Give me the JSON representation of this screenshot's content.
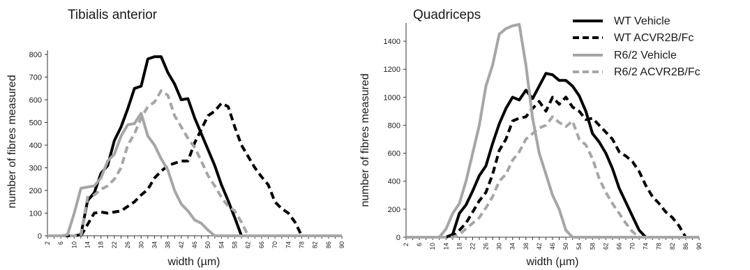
{
  "chart_data": [
    {
      "type": "line",
      "title": "Tibialis anterior",
      "xlabel": "width (µm)",
      "ylabel": "number of fibres measured",
      "ylim": [
        0,
        800
      ],
      "yticks": [
        0,
        100,
        200,
        300,
        400,
        500,
        600,
        700,
        800
      ],
      "xlim": [
        2,
        90
      ],
      "xticks": [
        2,
        6,
        10,
        14,
        18,
        22,
        26,
        30,
        34,
        38,
        42,
        46,
        50,
        54,
        58,
        62,
        66,
        70,
        74,
        78,
        82,
        86,
        90
      ],
      "grid": false,
      "series": [
        {
          "name": "WT Vehicle",
          "color": "#000000",
          "dash": false,
          "points": [
            [
              2,
              0
            ],
            [
              10,
              0
            ],
            [
              12,
              5
            ],
            [
              14,
              155
            ],
            [
              16,
              190
            ],
            [
              18,
              275
            ],
            [
              20,
              310
            ],
            [
              22,
              420
            ],
            [
              24,
              480
            ],
            [
              26,
              560
            ],
            [
              28,
              650
            ],
            [
              30,
              660
            ],
            [
              32,
              780
            ],
            [
              34,
              790
            ],
            [
              36,
              790
            ],
            [
              38,
              720
            ],
            [
              40,
              670
            ],
            [
              42,
              600
            ],
            [
              44,
              605
            ],
            [
              46,
              520
            ],
            [
              48,
              450
            ],
            [
              50,
              380
            ],
            [
              52,
              310
            ],
            [
              54,
              225
            ],
            [
              56,
              155
            ],
            [
              58,
              80
            ],
            [
              60,
              0
            ],
            [
              90,
              0
            ]
          ]
        },
        {
          "name": "WT ACVR2B/Fc",
          "color": "#000000",
          "dash": true,
          "points": [
            [
              2,
              0
            ],
            [
              12,
              0
            ],
            [
              14,
              50
            ],
            [
              16,
              100
            ],
            [
              18,
              105
            ],
            [
              20,
              100
            ],
            [
              22,
              105
            ],
            [
              24,
              110
            ],
            [
              26,
              130
            ],
            [
              28,
              150
            ],
            [
              30,
              180
            ],
            [
              32,
              205
            ],
            [
              34,
              255
            ],
            [
              36,
              285
            ],
            [
              38,
              310
            ],
            [
              40,
              320
            ],
            [
              42,
              330
            ],
            [
              44,
              330
            ],
            [
              46,
              410
            ],
            [
              48,
              470
            ],
            [
              50,
              530
            ],
            [
              52,
              550
            ],
            [
              54,
              585
            ],
            [
              56,
              570
            ],
            [
              58,
              480
            ],
            [
              60,
              400
            ],
            [
              62,
              350
            ],
            [
              64,
              300
            ],
            [
              66,
              260
            ],
            [
              68,
              225
            ],
            [
              70,
              150
            ],
            [
              72,
              120
            ],
            [
              74,
              100
            ],
            [
              76,
              60
            ],
            [
              78,
              0
            ],
            [
              90,
              0
            ]
          ]
        },
        {
          "name": "R6/2 Vehicle",
          "color": "#a6a6a6",
          "dash": false,
          "points": [
            [
              2,
              0
            ],
            [
              6,
              0
            ],
            [
              8,
              5
            ],
            [
              10,
              100
            ],
            [
              12,
              210
            ],
            [
              14,
              215
            ],
            [
              16,
              220
            ],
            [
              18,
              255
            ],
            [
              20,
              330
            ],
            [
              22,
              360
            ],
            [
              24,
              440
            ],
            [
              26,
              490
            ],
            [
              28,
              495
            ],
            [
              30,
              540
            ],
            [
              32,
              440
            ],
            [
              34,
              400
            ],
            [
              36,
              340
            ],
            [
              38,
              290
            ],
            [
              40,
              200
            ],
            [
              42,
              140
            ],
            [
              44,
              110
            ],
            [
              46,
              70
            ],
            [
              48,
              55
            ],
            [
              50,
              25
            ],
            [
              52,
              0
            ],
            [
              90,
              0
            ]
          ]
        },
        {
          "name": "R6/2 ACVR2B/Fc",
          "color": "#a6a6a6",
          "dash": true,
          "points": [
            [
              2,
              0
            ],
            [
              12,
              0
            ],
            [
              14,
              170
            ],
            [
              16,
              180
            ],
            [
              18,
              205
            ],
            [
              20,
              220
            ],
            [
              22,
              250
            ],
            [
              24,
              300
            ],
            [
              26,
              400
            ],
            [
              28,
              450
            ],
            [
              30,
              520
            ],
            [
              32,
              570
            ],
            [
              34,
              590
            ],
            [
              36,
              640
            ],
            [
              38,
              620
            ],
            [
              40,
              530
            ],
            [
              42,
              480
            ],
            [
              44,
              430
            ],
            [
              46,
              390
            ],
            [
              48,
              330
            ],
            [
              50,
              265
            ],
            [
              52,
              220
            ],
            [
              54,
              170
            ],
            [
              56,
              130
            ],
            [
              58,
              110
            ],
            [
              60,
              60
            ],
            [
              62,
              0
            ],
            [
              90,
              0
            ]
          ]
        }
      ]
    },
    {
      "type": "line",
      "title": "Quadriceps",
      "xlabel": "width (µm)",
      "ylabel": "number of fibres measured",
      "ylim": [
        0,
        1500
      ],
      "yticks": [
        0,
        200,
        400,
        600,
        800,
        1000,
        1200,
        1400
      ],
      "xlim": [
        2,
        90
      ],
      "xticks": [
        2,
        6,
        10,
        14,
        18,
        22,
        26,
        30,
        34,
        38,
        42,
        46,
        50,
        54,
        58,
        62,
        66,
        70,
        74,
        78,
        82,
        86,
        90
      ],
      "grid": false,
      "series": [
        {
          "name": "WT Vehicle",
          "color": "#000000",
          "dash": false,
          "points": [
            [
              2,
              0
            ],
            [
              14,
              0
            ],
            [
              16,
              20
            ],
            [
              18,
              170
            ],
            [
              20,
              230
            ],
            [
              22,
              330
            ],
            [
              24,
              440
            ],
            [
              26,
              510
            ],
            [
              28,
              670
            ],
            [
              30,
              810
            ],
            [
              32,
              920
            ],
            [
              34,
              1000
            ],
            [
              36,
              980
            ],
            [
              38,
              1050
            ],
            [
              40,
              990
            ],
            [
              42,
              1080
            ],
            [
              44,
              1170
            ],
            [
              46,
              1160
            ],
            [
              48,
              1120
            ],
            [
              50,
              1120
            ],
            [
              52,
              1080
            ],
            [
              54,
              1010
            ],
            [
              56,
              900
            ],
            [
              58,
              740
            ],
            [
              60,
              680
            ],
            [
              62,
              600
            ],
            [
              64,
              490
            ],
            [
              66,
              350
            ],
            [
              68,
              250
            ],
            [
              70,
              150
            ],
            [
              72,
              50
            ],
            [
              74,
              0
            ],
            [
              90,
              0
            ]
          ]
        },
        {
          "name": "WT ACVR2B/Fc",
          "color": "#000000",
          "dash": true,
          "points": [
            [
              2,
              0
            ],
            [
              16,
              0
            ],
            [
              18,
              50
            ],
            [
              20,
              100
            ],
            [
              22,
              180
            ],
            [
              24,
              260
            ],
            [
              26,
              320
            ],
            [
              28,
              450
            ],
            [
              30,
              620
            ],
            [
              32,
              700
            ],
            [
              34,
              830
            ],
            [
              36,
              850
            ],
            [
              38,
              860
            ],
            [
              40,
              920
            ],
            [
              42,
              970
            ],
            [
              44,
              900
            ],
            [
              46,
              1000
            ],
            [
              48,
              950
            ],
            [
              50,
              1000
            ],
            [
              52,
              930
            ],
            [
              54,
              900
            ],
            [
              56,
              840
            ],
            [
              58,
              850
            ],
            [
              60,
              800
            ],
            [
              62,
              750
            ],
            [
              64,
              700
            ],
            [
              66,
              610
            ],
            [
              68,
              580
            ],
            [
              70,
              540
            ],
            [
              72,
              470
            ],
            [
              74,
              370
            ],
            [
              76,
              290
            ],
            [
              78,
              240
            ],
            [
              80,
              180
            ],
            [
              82,
              140
            ],
            [
              84,
              80
            ],
            [
              86,
              0
            ],
            [
              90,
              0
            ]
          ]
        },
        {
          "name": "R6/2 Vehicle",
          "color": "#a6a6a6",
          "dash": false,
          "points": [
            [
              2,
              0
            ],
            [
              12,
              0
            ],
            [
              14,
              60
            ],
            [
              16,
              170
            ],
            [
              18,
              240
            ],
            [
              20,
              400
            ],
            [
              22,
              600
            ],
            [
              24,
              800
            ],
            [
              26,
              1080
            ],
            [
              28,
              1230
            ],
            [
              30,
              1450
            ],
            [
              32,
              1490
            ],
            [
              34,
              1510
            ],
            [
              36,
              1520
            ],
            [
              38,
              1230
            ],
            [
              40,
              850
            ],
            [
              42,
              600
            ],
            [
              44,
              450
            ],
            [
              46,
              300
            ],
            [
              48,
              200
            ],
            [
              50,
              50
            ],
            [
              52,
              0
            ],
            [
              90,
              0
            ]
          ]
        },
        {
          "name": "R6/2 ACVR2B/Fc",
          "color": "#a6a6a6",
          "dash": true,
          "points": [
            [
              2,
              0
            ],
            [
              16,
              0
            ],
            [
              18,
              20
            ],
            [
              20,
              60
            ],
            [
              22,
              100
            ],
            [
              24,
              140
            ],
            [
              26,
              210
            ],
            [
              28,
              290
            ],
            [
              30,
              400
            ],
            [
              32,
              450
            ],
            [
              34,
              550
            ],
            [
              36,
              610
            ],
            [
              38,
              700
            ],
            [
              40,
              740
            ],
            [
              42,
              780
            ],
            [
              44,
              800
            ],
            [
              46,
              860
            ],
            [
              48,
              820
            ],
            [
              50,
              790
            ],
            [
              52,
              830
            ],
            [
              54,
              700
            ],
            [
              56,
              660
            ],
            [
              58,
              560
            ],
            [
              60,
              420
            ],
            [
              62,
              320
            ],
            [
              64,
              240
            ],
            [
              66,
              170
            ],
            [
              68,
              100
            ],
            [
              70,
              40
            ],
            [
              72,
              0
            ],
            [
              90,
              0
            ]
          ]
        }
      ]
    }
  ],
  "legend": {
    "position": "top-right",
    "entries": [
      {
        "label": "WT Vehicle",
        "color": "#000000",
        "dash": false
      },
      {
        "label": "WT ACVR2B/Fc",
        "color": "#000000",
        "dash": true
      },
      {
        "label": "R6/2 Vehicle",
        "color": "#a6a6a6",
        "dash": false
      },
      {
        "label": "R6/2 ACVR2B/Fc",
        "color": "#a6a6a6",
        "dash": true
      }
    ]
  }
}
